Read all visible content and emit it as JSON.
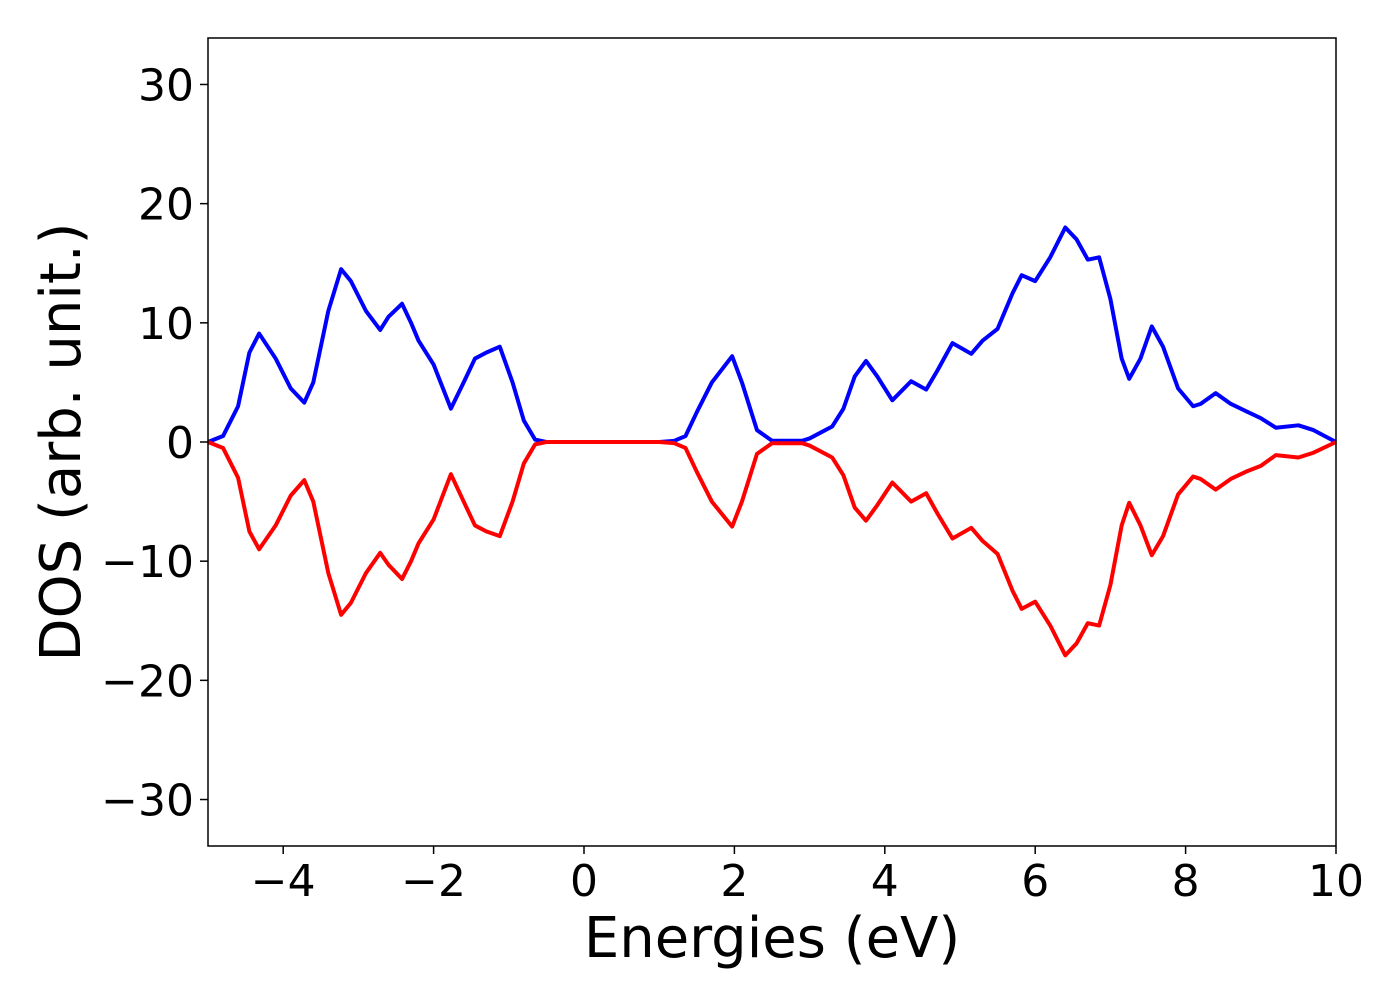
{
  "chart_data": {
    "type": "line",
    "xlabel": "Energies (eV)",
    "ylabel": "DOS (arb. unit.)",
    "x": [
      -5,
      -4.8,
      -4.6,
      -4.45,
      -4.32,
      -4.1,
      -3.9,
      -3.72,
      -3.6,
      -3.4,
      -3.23,
      -3.1,
      -2.9,
      -2.71,
      -2.6,
      -2.42,
      -2.3,
      -2.2,
      -2.0,
      -1.77,
      -1.6,
      -1.45,
      -1.3,
      -1.12,
      -0.95,
      -0.8,
      -0.65,
      -0.5,
      0,
      0.5,
      1.0,
      1.2,
      1.35,
      1.5,
      1.7,
      1.97,
      2.1,
      2.3,
      2.5,
      2.9,
      3.0,
      3.3,
      3.45,
      3.6,
      3.75,
      3.9,
      4.1,
      4.35,
      4.55,
      4.7,
      4.9,
      5.15,
      5.3,
      5.5,
      5.7,
      5.82,
      6.0,
      6.2,
      6.4,
      6.55,
      6.7,
      6.85,
      7.0,
      7.15,
      7.25,
      7.4,
      7.55,
      7.7,
      7.9,
      8.1,
      8.2,
      8.4,
      8.6,
      8.8,
      9.0,
      9.2,
      9.5,
      9.7,
      10
    ],
    "series": [
      {
        "color": "#0000ff",
        "values": [
          0,
          0.5,
          3,
          7.5,
          9.1,
          7,
          4.5,
          3.3,
          5,
          11,
          14.5,
          13.5,
          11,
          9.4,
          10.5,
          11.6,
          10,
          8.5,
          6.5,
          2.8,
          5,
          7,
          7.5,
          8,
          5,
          1.8,
          0.2,
          0,
          0,
          0,
          0,
          0.1,
          0.5,
          2.5,
          5,
          7.2,
          5,
          1,
          0.1,
          0.1,
          0.3,
          1.3,
          2.8,
          5.5,
          6.8,
          5.5,
          3.5,
          5.1,
          4.4,
          6,
          8.3,
          7.4,
          8.5,
          9.5,
          12.5,
          14,
          13.5,
          15.5,
          18,
          17,
          15.3,
          15.5,
          12,
          7,
          5.3,
          7,
          9.7,
          8,
          4.5,
          3,
          3.2,
          4.1,
          3.2,
          2.6,
          2,
          1.2,
          1.4,
          1,
          0
        ]
      },
      {
        "color": "#ff0000",
        "values": [
          0,
          -0.5,
          -3,
          -7.5,
          -9,
          -7,
          -4.5,
          -3.2,
          -5,
          -11,
          -14.5,
          -13.5,
          -11,
          -9.3,
          -10.3,
          -11.5,
          -10,
          -8.5,
          -6.5,
          -2.7,
          -5,
          -7,
          -7.5,
          -7.9,
          -5,
          -1.8,
          -0.2,
          0,
          0,
          0,
          0,
          -0.1,
          -0.5,
          -2.5,
          -5,
          -7.1,
          -5,
          -1,
          -0.1,
          -0.1,
          -0.3,
          -1.3,
          -2.8,
          -5.5,
          -6.6,
          -5.3,
          -3.4,
          -5,
          -4.3,
          -6,
          -8.1,
          -7.2,
          -8.3,
          -9.4,
          -12.5,
          -14,
          -13.4,
          -15.4,
          -17.9,
          -16.9,
          -15.2,
          -15.4,
          -12,
          -7,
          -5.1,
          -7,
          -9.5,
          -7.9,
          -4.4,
          -2.9,
          -3.1,
          -4,
          -3.1,
          -2.5,
          -2,
          -1.1,
          -1.3,
          -0.9,
          0
        ]
      }
    ],
    "xlim": [
      -5,
      10
    ],
    "ylim": [
      -33.9,
      33.9
    ],
    "xticks": [
      {
        "value": -4,
        "label": "−4"
      },
      {
        "value": -2,
        "label": "−2"
      },
      0,
      2,
      4,
      6,
      8,
      10
    ],
    "yticks": [
      {
        "value": -30,
        "label": "−30"
      },
      {
        "value": -20,
        "label": "−20"
      },
      {
        "value": -10,
        "label": "−10"
      },
      0,
      10,
      20,
      30
    ]
  }
}
